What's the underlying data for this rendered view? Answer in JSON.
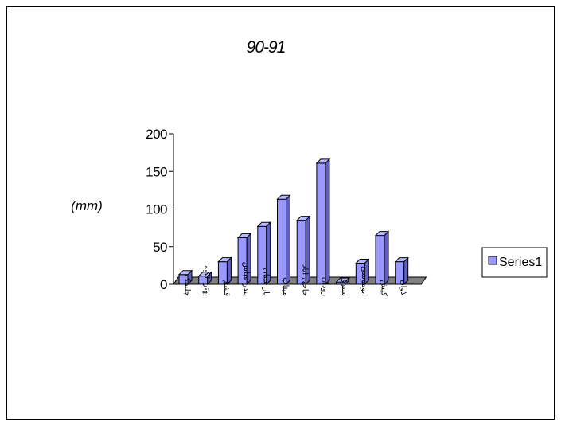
{
  "chart_data": {
    "type": "bar",
    "title": "90-91",
    "ylabel": "(mm)",
    "xlabel": "",
    "ylim": [
      0,
      200
    ],
    "yticks": [
      "0",
      "50",
      "100",
      "150",
      "200"
    ],
    "categories": [
      "جلسک",
      "بهتر الكیه",
      "قشم",
      "بندر عباس",
      "یار سیان",
      "میتاب",
      "حاجی آباد",
      "رودان",
      "سیری",
      "ابوموسی",
      "کیش",
      "لاوان"
    ],
    "series": [
      {
        "name": "Series1",
        "values": [
          13,
          11,
          30,
          62,
          77,
          113,
          85,
          161,
          3,
          28,
          65,
          30
        ]
      }
    ],
    "legend": "right",
    "grid": false,
    "colors": {
      "bar_front": "#9999ff",
      "bar_side": "#5f5fc2",
      "bar_top": "#b8b8ff",
      "floor": "#808080"
    }
  }
}
